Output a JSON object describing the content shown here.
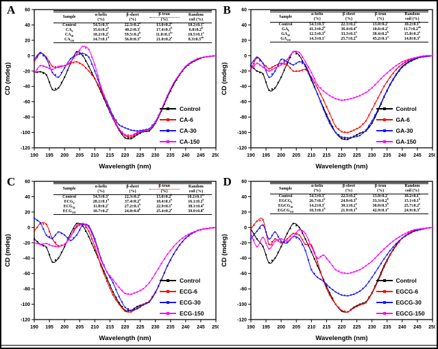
{
  "figure": {
    "xlabel": "Wavelength (nm)",
    "ylabel": "CD (mdeg)",
    "x_ticks": [
      190,
      195,
      200,
      205,
      210,
      215,
      220,
      225,
      230,
      235,
      240,
      245,
      250
    ],
    "y_ticks": [
      60,
      40,
      20,
      0,
      -20,
      -40,
      -60,
      -80,
      -100,
      -120
    ],
    "series_colors": {
      "control": "#000000",
      "dose6": "#ff0000",
      "dose30": "#1414ff",
      "dose150": "#ff00ff"
    },
    "spellcheck_underline_color": "#ee0000"
  },
  "table_headers": [
    {
      "line1": "Sample",
      "line2": ""
    },
    {
      "line1": "α-helix",
      "line2": "(%)"
    },
    {
      "line1": "β-sheet",
      "line2": "(%)"
    },
    {
      "line1": "β-trun",
      "line2": "(%)"
    },
    {
      "line1": "Random",
      "line2": "coil (%)"
    }
  ],
  "panels": [
    {
      "letter": "A",
      "turn_underlined": true,
      "table_rows": [
        [
          "Control",
          "54.5±0.3^{a}",
          "22.3±0.2^{d}",
          "13.0±0.2^{b}",
          "10.2±0.1^{a}"
        ],
        [
          "CA_{6}",
          "35.6±0.2^{b}",
          "40.2±0.3^{c}",
          "17.4±0.1^{b}",
          "6.8±0.2^{b}"
        ],
        [
          "CA_{30}",
          "18.2±0.2^{c}",
          "59.5±0.2^{b}",
          "11.8±0.1^{bc}",
          "10.5±0.1^{a}"
        ],
        [
          "CA_{150}",
          "14.7±0.1^{d}",
          "56.0±0.3^{a}",
          "21.0±0.2^{a}",
          "8.3±0.3^{ab}"
        ]
      ]
    },
    {
      "letter": "B",
      "turn_underlined": false,
      "table_rows": [
        [
          "Control",
          "54.5±0.3^{a}",
          "22.3±0.2^{b}",
          "13.0±0.2^{c}",
          "10.2±0.1^{b}"
        ],
        [
          "GA_{6}",
          "41.3±0.2^{b}",
          "36.4±0.4^{a}",
          "10.6±0.2^{c}",
          "11.7±0.2^{ab}"
        ],
        [
          "GA_{30}",
          "12.5±0.3^{d}",
          "33.3±0.3^{a}",
          "38.4±0.2^{b}",
          "15.8±0.2^{a}"
        ],
        [
          "GA_{150}",
          "14.3±0.1^{c}",
          "25.7±0.2^{b}",
          "45.2±0.1^{a}",
          "14.8±0.3^{a}"
        ]
      ]
    },
    {
      "letter": "C",
      "turn_underlined": true,
      "table_rows": [
        [
          "Control",
          "54.5±0.3^{a}",
          "22.3±0.2^{b}",
          "13.0±0.2^{b}",
          "10.2±0.1^{bc}"
        ],
        [
          "ECG_{6}",
          "28.1±0.1^{b}",
          "37.4±0.2^{a}",
          "18.4±0.1^{b}",
          "16.1±0.2^{b}"
        ],
        [
          "ECG_{30}",
          "11.8±0.2^{c}",
          "27.2±0.1^{b}",
          "22.9±0.1^{a}",
          "38.1±0.4^{a}"
        ],
        [
          "ECG_{150}",
          "10.7±0.2^{c}",
          "24.0±0.0^{b}",
          "25.4±0.2^{a}",
          "39.9±0.8^{a}"
        ]
      ]
    },
    {
      "letter": "D",
      "turn_underlined": false,
      "table_rows": [
        [
          "Control",
          "54.5±0.3^{a}",
          "22.3±0.2^{b}",
          "13.0±0.2^{c}",
          "10.2±0.1^{b}"
        ],
        [
          "EGCG_{6}",
          "26.7±0.1^{b}",
          "24.9±0.3^{b}",
          "33.3±0.2^{b}",
          "15.1±0.1^{b}"
        ],
        [
          "EGCG_{30}",
          "14.2±0.3^{c}",
          "30.1±0.2^{a}",
          "30.0±0.3^{b}",
          "25.7±0.2^{a}"
        ],
        [
          "EGCG_{150}",
          "10.3±0.1^{d}",
          "21.9±0.1^{b}",
          "42.9±0.1^{a}",
          "24.9±0.3^{a}"
        ]
      ]
    }
  ],
  "chart_data": [
    {
      "panel": "A",
      "type": "line",
      "xlabel": "Wavelength (nm)",
      "ylabel": "CD (mdeg)",
      "xlim": [
        190,
        250
      ],
      "ylim": [
        -120,
        60
      ],
      "legend_position": "lower right",
      "grid": false,
      "x": [
        190,
        192,
        194,
        196,
        198,
        200,
        202,
        204,
        206,
        208,
        210,
        212,
        214,
        216,
        218,
        220,
        222,
        224,
        226,
        228,
        230,
        232,
        234,
        236,
        238,
        240,
        242,
        244,
        246,
        248,
        250
      ],
      "series": [
        {
          "name": "Control",
          "color": "#000000",
          "y": [
            -22,
            -21,
            -25,
            -44,
            -42,
            -28,
            -10,
            5,
            0,
            -14,
            -30,
            -47,
            -65,
            -82,
            -97,
            -107,
            -108,
            -103,
            -99,
            -98,
            -88,
            -72,
            -54,
            -38,
            -25,
            -15,
            -9,
            -5,
            -2,
            -1,
            0
          ]
        },
        {
          "name": "CA-6",
          "color": "#ff0000",
          "y": [
            -8,
            3,
            -2,
            -14,
            -15,
            -13,
            -10,
            -8,
            -12,
            -20,
            -30,
            -45,
            -62,
            -80,
            -95,
            -104,
            -106,
            -101,
            -98,
            -96,
            -86,
            -70,
            -52,
            -36,
            -24,
            -14,
            -8,
            -4,
            -2,
            -1,
            0
          ]
        },
        {
          "name": "CA-30",
          "color": "#1414ff",
          "y": [
            -5,
            4,
            -4,
            -22,
            -28,
            -16,
            -4,
            1,
            3,
            -2,
            -20,
            -42,
            -60,
            -78,
            -90,
            -94,
            -97,
            -98,
            -97,
            -95,
            -86,
            -70,
            -52,
            -36,
            -24,
            -14,
            -8,
            -4,
            -2,
            -1,
            0
          ]
        },
        {
          "name": "CA-150",
          "color": "#ff00ff",
          "y": [
            -23,
            -13,
            -15,
            -18,
            -14,
            -13,
            -8,
            2,
            12,
            8,
            -12,
            -40,
            -62,
            -81,
            -96,
            -103,
            -104,
            -100,
            -98,
            -96,
            -87,
            -70,
            -52,
            -36,
            -24,
            -14,
            -8,
            -4,
            -2,
            -1,
            0
          ]
        }
      ]
    },
    {
      "panel": "B",
      "type": "line",
      "xlabel": "Wavelength (nm)",
      "ylabel": "CD (mdeg)",
      "xlim": [
        190,
        250
      ],
      "ylim": [
        -120,
        60
      ],
      "legend_position": "lower right",
      "grid": false,
      "x": [
        190,
        192,
        194,
        196,
        198,
        200,
        202,
        204,
        206,
        208,
        210,
        212,
        214,
        216,
        218,
        220,
        222,
        224,
        226,
        228,
        230,
        232,
        234,
        236,
        238,
        240,
        242,
        244,
        246,
        248,
        250
      ],
      "series": [
        {
          "name": "Control",
          "color": "#000000",
          "y": [
            -13,
            -20,
            -24,
            -45,
            -42,
            -28,
            -10,
            5,
            0,
            -14,
            -32,
            -50,
            -68,
            -85,
            -100,
            -108,
            -109,
            -105,
            -101,
            -98,
            -88,
            -72,
            -54,
            -38,
            -25,
            -15,
            -9,
            -5,
            -2,
            -1,
            0
          ]
        },
        {
          "name": "GA-6",
          "color": "#ff0000",
          "y": [
            -18,
            -3,
            -10,
            -17,
            -13,
            -10,
            -12,
            -20,
            -20,
            -18,
            -28,
            -42,
            -58,
            -75,
            -92,
            -99,
            -100,
            -97,
            -93,
            -85,
            -70,
            -55,
            -40,
            -28,
            -18,
            -11,
            -6,
            -3,
            -2,
            -1,
            0
          ]
        },
        {
          "name": "GA-30",
          "color": "#1414ff",
          "y": [
            -12,
            -2,
            -10,
            -28,
            -20,
            -5,
            -8,
            -12,
            -8,
            -12,
            -30,
            -50,
            -70,
            -88,
            -100,
            -106,
            -107,
            -106,
            -104,
            -97,
            -85,
            -70,
            -53,
            -37,
            -24,
            -14,
            -8,
            -4,
            -2,
            -1,
            0
          ]
        },
        {
          "name": "GA-150",
          "color": "#ff00ff",
          "y": [
            -18,
            -10,
            -15,
            -20,
            -16,
            -12,
            -5,
            5,
            4,
            -8,
            -22,
            -38,
            -46,
            -52,
            -56,
            -58,
            -57,
            -55,
            -52,
            -48,
            -42,
            -34,
            -26,
            -19,
            -13,
            -8,
            -5,
            -3,
            -1,
            0,
            0
          ]
        }
      ]
    },
    {
      "panel": "C",
      "type": "line",
      "xlabel": "Wavelength (nm)",
      "ylabel": "CD (mdeg)",
      "xlim": [
        190,
        250
      ],
      "ylim": [
        -120,
        60
      ],
      "legend_position": "lower right",
      "grid": false,
      "x": [
        190,
        192,
        194,
        196,
        198,
        200,
        202,
        204,
        206,
        208,
        210,
        212,
        214,
        216,
        218,
        220,
        222,
        224,
        226,
        228,
        230,
        232,
        234,
        236,
        238,
        240,
        242,
        244,
        246,
        248,
        250
      ],
      "series": [
        {
          "name": "Control",
          "color": "#000000",
          "y": [
            -15,
            -22,
            -26,
            -45,
            -40,
            -25,
            -8,
            5,
            2,
            -12,
            -30,
            -48,
            -66,
            -84,
            -98,
            -108,
            -108,
            -103,
            -100,
            -97,
            -85,
            -68,
            -50,
            -35,
            -23,
            -14,
            -8,
            -4,
            -2,
            -1,
            0
          ]
        },
        {
          "name": "ECG-6",
          "color": "#ff0000",
          "y": [
            -5,
            5,
            4,
            -15,
            -24,
            -22,
            -12,
            2,
            5,
            -5,
            -25,
            -50,
            -70,
            -88,
            -100,
            -109,
            -110,
            -105,
            -100,
            -96,
            -84,
            -68,
            -50,
            -35,
            -23,
            -14,
            -8,
            -4,
            -2,
            -1,
            0
          ]
        },
        {
          "name": "ECG-30",
          "color": "#1414ff",
          "y": [
            12,
            6,
            -10,
            -14,
            -6,
            -10,
            -17,
            -10,
            3,
            2,
            -15,
            -40,
            -58,
            -72,
            -90,
            -104,
            -108,
            -106,
            -101,
            -97,
            -85,
            -68,
            -50,
            -35,
            -23,
            -14,
            -8,
            -4,
            -2,
            -1,
            0
          ]
        },
        {
          "name": "ECG-150",
          "color": "#ff00ff",
          "y": [
            -20,
            -22,
            -21,
            -24,
            -25,
            -22,
            -12,
            0,
            5,
            0,
            -18,
            -42,
            -58,
            -68,
            -78,
            -86,
            -87,
            -84,
            -80,
            -72,
            -60,
            -47,
            -35,
            -25,
            -17,
            -11,
            -7,
            -4,
            -2,
            -1,
            0
          ]
        }
      ]
    },
    {
      "panel": "D",
      "type": "line",
      "xlabel": "Wavelength (nm)",
      "ylabel": "CD (mdeg)",
      "xlim": [
        190,
        250
      ],
      "ylim": [
        -120,
        60
      ],
      "legend_position": "lower right",
      "grid": false,
      "x": [
        190,
        192,
        194,
        196,
        198,
        200,
        202,
        204,
        206,
        208,
        210,
        212,
        214,
        216,
        218,
        220,
        222,
        224,
        226,
        228,
        230,
        232,
        234,
        236,
        238,
        240,
        242,
        244,
        246,
        248,
        250
      ],
      "series": [
        {
          "name": "Control",
          "color": "#000000",
          "y": [
            -2,
            -15,
            -25,
            -46,
            -40,
            -25,
            -8,
            5,
            0,
            -15,
            -32,
            -50,
            -68,
            -85,
            -100,
            -109,
            -110,
            -104,
            -100,
            -97,
            -85,
            -68,
            -50,
            -35,
            -23,
            -14,
            -8,
            -4,
            -2,
            -1,
            0
          ]
        },
        {
          "name": "EGCG-6",
          "color": "#ff0000",
          "y": [
            -2,
            8,
            10,
            -22,
            -15,
            -20,
            -15,
            -8,
            -10,
            -22,
            -23,
            -45,
            -70,
            -88,
            -100,
            -108,
            -110,
            -105,
            -101,
            -98,
            -86,
            -70,
            -52,
            -36,
            -24,
            -14,
            -8,
            -4,
            -2,
            -1,
            0
          ]
        },
        {
          "name": "EGCG-30",
          "color": "#1414ff",
          "y": [
            -15,
            -5,
            3,
            -15,
            -6,
            -18,
            -20,
            -12,
            -15,
            -30,
            -55,
            -65,
            -70,
            -78,
            -84,
            -88,
            -89,
            -87,
            -83,
            -76,
            -65,
            -53,
            -41,
            -30,
            -21,
            -14,
            -9,
            -5,
            -3,
            -1,
            0
          ]
        },
        {
          "name": "EGCG-150",
          "color": "#ff00ff",
          "y": [
            -8,
            -25,
            -13,
            -28,
            -18,
            -15,
            -18,
            -12,
            -3,
            -8,
            -25,
            -40,
            -36,
            -45,
            -55,
            -59,
            -60,
            -58,
            -55,
            -50,
            -44,
            -36,
            -28,
            -21,
            -15,
            -10,
            -6,
            -3,
            -2,
            -1,
            0
          ]
        }
      ]
    }
  ]
}
